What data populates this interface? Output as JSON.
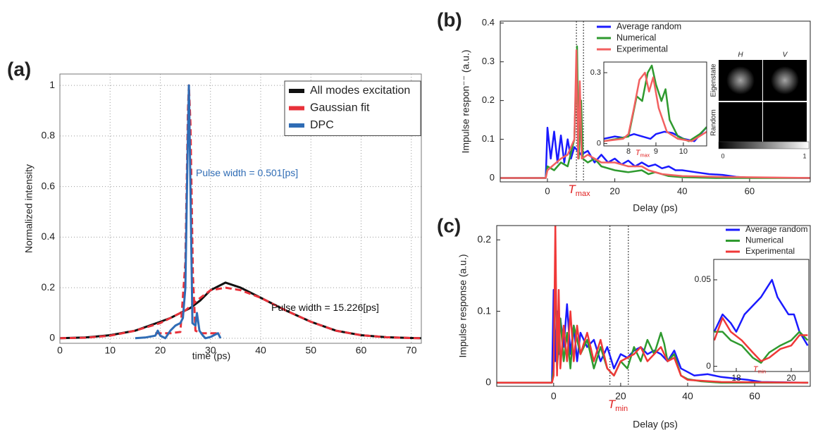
{
  "chart_data": [
    {
      "type": "line",
      "panel_label": "(a)",
      "xlabel": "time (ps)",
      "ylabel": "Normalized intensity",
      "xlim": [
        0,
        72
      ],
      "ylim": [
        -0.02,
        1.045
      ],
      "xticks": [
        0,
        10,
        20,
        30,
        40,
        50,
        60,
        70
      ],
      "yticks": [
        0,
        0.2,
        0.4,
        0.6,
        0.8,
        1
      ],
      "grid": true,
      "legend": "upper right",
      "series": [
        {
          "name": "All modes excitation",
          "color": "#111111",
          "x": [
            0,
            5,
            10,
            15,
            20,
            22,
            24,
            25,
            26,
            28,
            30,
            33,
            36,
            40,
            45,
            50,
            55,
            60,
            65,
            70,
            72
          ],
          "values": [
            0,
            0.003,
            0.012,
            0.03,
            0.065,
            0.08,
            0.1,
            0.11,
            0.12,
            0.15,
            0.19,
            0.22,
            0.2,
            0.16,
            0.11,
            0.065,
            0.03,
            0.012,
            0.004,
            0.001,
            0
          ]
        },
        {
          "name": "Gaussian fit",
          "color": "#e8313a",
          "dashed": true,
          "x": [
            0,
            5,
            10,
            15,
            20,
            25,
            28,
            30,
            33,
            36,
            40,
            45,
            50,
            55,
            60,
            65,
            70,
            72
          ],
          "values": [
            0,
            0.002,
            0.01,
            0.03,
            0.06,
            0.11,
            0.16,
            0.19,
            0.2,
            0.19,
            0.16,
            0.11,
            0.065,
            0.03,
            0.012,
            0.004,
            0.001,
            0
          ]
        },
        {
          "color": "#e8313a",
          "dashed": true,
          "x": [
            19,
            20,
            22,
            24,
            25,
            25.5,
            25.7,
            26,
            26.5,
            27,
            28,
            30,
            32
          ],
          "values": [
            0.02,
            0.02,
            0.02,
            0.025,
            0.3,
            0.9,
            1,
            0.85,
            0.25,
            0.03,
            0.02,
            0.02,
            0.02
          ]
        },
        {
          "name": "DPC",
          "color": "#2f6cb5",
          "x": [
            15,
            17,
            19,
            19.5,
            20,
            20.5,
            21,
            22,
            23,
            24,
            24.5,
            25,
            25.4,
            25.7,
            26,
            26.4,
            27,
            27.3,
            27.8,
            28.5,
            29,
            30,
            31,
            31.5,
            32
          ],
          "values": [
            0,
            0.003,
            0.01,
            0.03,
            0.01,
            0.005,
            0,
            0.03,
            0.05,
            0.06,
            0.08,
            0.2,
            0.7,
            1,
            0.6,
            0.06,
            0.05,
            0.1,
            0.03,
            0.01,
            0,
            0.005,
            0.015,
            0.02,
            0
          ]
        }
      ],
      "annotations": [
        {
          "text": "Pulse width = 0.501[ps]",
          "color": "#2f6cb5"
        },
        {
          "text": "Pulse width = 15.226[ps]",
          "color": "#111111"
        }
      ]
    },
    {
      "type": "line",
      "panel_label": "(b)",
      "xlabel": "Delay (ps)",
      "ylabel": "Impulse respon⁻⁻ (a.u.)",
      "xlim": [
        -14,
        78
      ],
      "ylim": [
        -0.01,
        0.405
      ],
      "xticks": [
        0,
        20,
        40,
        60
      ],
      "yticks": [
        0,
        0.1,
        0.2,
        0.3,
        0.4
      ],
      "grid": false,
      "legend": "upper center",
      "vlines": [
        8.6,
        10.7
      ],
      "series": [
        {
          "name": "Average random",
          "color": "#1a1aff",
          "x": [
            -14,
            -0.5,
            0,
            1,
            2,
            3,
            4,
            5,
            6,
            7,
            8,
            9,
            10,
            12,
            14,
            16,
            18,
            20,
            22,
            24,
            26,
            28,
            30,
            32,
            34,
            36,
            38,
            40,
            44,
            48,
            52,
            56,
            60,
            78
          ],
          "values": [
            0,
            0,
            0.13,
            0.05,
            0.12,
            0.04,
            0.11,
            0.04,
            0.1,
            0.05,
            0.08,
            0.07,
            0.06,
            0.07,
            0.04,
            0.06,
            0.04,
            0.05,
            0.035,
            0.045,
            0.03,
            0.04,
            0.03,
            0.035,
            0.025,
            0.03,
            0.02,
            0.02,
            0.015,
            0.01,
            0.008,
            0.003,
            0.001,
            0
          ]
        },
        {
          "name": "Numerical",
          "color": "#2f9a2f",
          "x": [
            -14,
            -0.5,
            0,
            2,
            4,
            6,
            8,
            8.8,
            9.3,
            10,
            10.5,
            12,
            14,
            16,
            20,
            24,
            28,
            30,
            32,
            36,
            40,
            50,
            78
          ],
          "values": [
            0,
            0,
            0.03,
            0.02,
            0.04,
            0.03,
            0.1,
            0.34,
            0.05,
            0.2,
            0.05,
            0.04,
            0.05,
            0.03,
            0.02,
            0.015,
            0.02,
            0.01,
            0.015,
            0.005,
            0.002,
            0,
            0
          ]
        },
        {
          "name": "Experimental",
          "color": "#f26060",
          "x": [
            -14,
            -0.5,
            0,
            4,
            6,
            8,
            8.6,
            9.1,
            9.6,
            10.2,
            12,
            14,
            16,
            20,
            24,
            28,
            30,
            34,
            40,
            50,
            78
          ],
          "values": [
            0,
            0,
            0.02,
            0.05,
            0.06,
            0.1,
            0.33,
            0.05,
            0.25,
            0.05,
            0.06,
            0.05,
            0.04,
            0.04,
            0.03,
            0.03,
            0.02,
            0.01,
            0.005,
            0.003,
            0
          ]
        }
      ],
      "annotations": [
        {
          "text": "T",
          "sub": "max",
          "color": "#e02020"
        }
      ],
      "image_panel": {
        "columns": [
          "H",
          "V"
        ],
        "column_colors": [
          "#111111",
          "#f0a030"
        ],
        "rows": [
          "Eigenstate",
          "Random"
        ],
        "row_colors": [
          "#e02020",
          "#1a1aff"
        ],
        "colorbar_ticks": [
          0,
          1
        ]
      }
    },
    {
      "type": "line",
      "xlim": [
        7.1,
        10.85
      ],
      "ylim": [
        -0.01,
        0.345
      ],
      "xticks": [
        8,
        9,
        10
      ],
      "yticks": [
        0,
        0.3
      ],
      "grid": false,
      "series": [
        {
          "color": "#1a1aff",
          "x": [
            7.1,
            7.5,
            7.8,
            8.2,
            8.5,
            8.8,
            9,
            9.3,
            9.6,
            10,
            10.4,
            10.85
          ],
          "values": [
            0.02,
            0.03,
            0.025,
            0.04,
            0.03,
            0.02,
            0.04,
            0.05,
            0.045,
            0.02,
            0.01,
            0.07
          ]
        },
        {
          "color": "#2f9a2f",
          "x": [
            7.1,
            7.6,
            8,
            8.3,
            8.5,
            8.7,
            8.85,
            9,
            9.2,
            9.35,
            9.5,
            9.8,
            10.2,
            10.6,
            10.85
          ],
          "values": [
            0.01,
            0.02,
            0.03,
            0.2,
            0.18,
            0.3,
            0.33,
            0.25,
            0.18,
            0.23,
            0.1,
            0.03,
            0.01,
            0.04,
            0.07
          ]
        },
        {
          "color": "#f26060",
          "x": [
            7.1,
            7.8,
            8,
            8.2,
            8.4,
            8.6,
            8.75,
            8.9,
            9.1,
            9.4,
            9.8,
            10.3,
            10.85
          ],
          "values": [
            0.01,
            0.02,
            0.04,
            0.15,
            0.27,
            0.3,
            0.22,
            0.28,
            0.15,
            0.05,
            0.02,
            0.01,
            0.05
          ]
        }
      ],
      "annotations": [
        {
          "text": "T",
          "sub": "max",
          "color": "#e02020"
        }
      ]
    },
    {
      "type": "line",
      "panel_label": "(c)",
      "xlabel": "Delay (ps)",
      "ylabel": "Impulse response (a.u.)",
      "xlim": [
        -17,
        76.6
      ],
      "ylim": [
        -0.005,
        0.22
      ],
      "xticks": [
        0,
        20,
        40,
        60
      ],
      "yticks": [
        0,
        0.1,
        0.2
      ],
      "grid": false,
      "legend": "upper right",
      "vlines": [
        16.8,
        22.3
      ],
      "series": [
        {
          "name": "Average random",
          "color": "#1a1aff",
          "x": [
            -17,
            -0.5,
            0,
            0.5,
            1,
            1.5,
            2,
            3,
            4,
            5,
            6,
            7,
            8,
            10,
            12,
            14,
            16,
            18,
            20,
            22,
            24,
            26,
            28,
            30,
            32,
            34,
            36,
            38,
            40,
            42,
            46,
            50,
            54,
            58,
            62,
            76
          ],
          "values": [
            0,
            0,
            0.13,
            0.03,
            0.1,
            0.04,
            0.09,
            0.05,
            0.11,
            0.04,
            0.08,
            0.03,
            0.07,
            0.05,
            0.06,
            0.03,
            0.05,
            0.02,
            0.04,
            0.035,
            0.045,
            0.05,
            0.04,
            0.045,
            0.04,
            0.03,
            0.045,
            0.02,
            0.015,
            0.01,
            0.012,
            0.008,
            0.006,
            0.004,
            0.001,
            0
          ]
        },
        {
          "name": "Numerical",
          "color": "#2f9a2f",
          "x": [
            -17,
            -0.5,
            0,
            0.5,
            1,
            2,
            3,
            4,
            5,
            6,
            8,
            10,
            12,
            14,
            16,
            18,
            20,
            22,
            24,
            26,
            28,
            30,
            32,
            33,
            34,
            36,
            38,
            40,
            44,
            50,
            76
          ],
          "values": [
            0,
            0,
            0.02,
            0.18,
            0.02,
            0.09,
            0.03,
            0.07,
            0.02,
            0.08,
            0.04,
            0.06,
            0.02,
            0.05,
            0.02,
            0.01,
            0.03,
            0.02,
            0.05,
            0.03,
            0.06,
            0.04,
            0.07,
            0.055,
            0.03,
            0.04,
            0.01,
            0.005,
            0.002,
            0,
            0
          ]
        },
        {
          "name": "Experimental",
          "color": "#f03838",
          "x": [
            -17,
            -0.5,
            0,
            0.5,
            1,
            1.5,
            2,
            3,
            4,
            5,
            6,
            7,
            8,
            10,
            12,
            14,
            16,
            18,
            20,
            24,
            26,
            28,
            30,
            32,
            34,
            36,
            38,
            40,
            50,
            76
          ],
          "values": [
            0,
            0,
            0.01,
            0.22,
            0.01,
            0.13,
            0.02,
            0.08,
            0.03,
            0.1,
            0.03,
            0.08,
            0.04,
            0.07,
            0.03,
            0.06,
            0.02,
            0.01,
            0.03,
            0.04,
            0.05,
            0.03,
            0.04,
            0.05,
            0.03,
            0.035,
            0.01,
            0.004,
            0.001,
            0
          ]
        }
      ],
      "annotations": [
        {
          "text": "T",
          "sub": "min",
          "color": "#e02020"
        }
      ]
    },
    {
      "type": "line",
      "xlim": [
        17.18,
        20.64
      ],
      "ylim": [
        -0.003,
        0.0618
      ],
      "xticks": [
        18,
        20
      ],
      "yticks": [
        0,
        0.05
      ],
      "grid": false,
      "series": [
        {
          "color": "#1a1aff",
          "x": [
            17.2,
            17.5,
            17.8,
            18,
            18.3,
            18.6,
            18.9,
            19.1,
            19.3,
            19.5,
            19.7,
            19.9,
            20.1,
            20.3,
            20.6
          ],
          "values": [
            0.02,
            0.03,
            0.025,
            0.02,
            0.03,
            0.035,
            0.04,
            0.045,
            0.05,
            0.04,
            0.035,
            0.03,
            0.03,
            0.02,
            0.012
          ]
        },
        {
          "color": "#2f9a2f",
          "x": [
            17.2,
            17.5,
            17.8,
            18.2,
            18.6,
            18.9,
            19.2,
            19.6,
            20,
            20.3,
            20.6
          ],
          "values": [
            0.02,
            0.02,
            0.015,
            0.012,
            0.005,
            0.002,
            0.008,
            0.012,
            0.015,
            0.02,
            0.015
          ]
        },
        {
          "color": "#f03838",
          "x": [
            17.2,
            17.5,
            17.8,
            18.2,
            18.6,
            18.9,
            19.2,
            19.6,
            20,
            20.3,
            20.6
          ],
          "values": [
            0.015,
            0.028,
            0.02,
            0.015,
            0.008,
            0.003,
            0.005,
            0.01,
            0.012,
            0.018,
            0.018
          ]
        }
      ],
      "annotations": [
        {
          "text": "T",
          "sub": "min",
          "color": "#e02020"
        }
      ]
    }
  ]
}
